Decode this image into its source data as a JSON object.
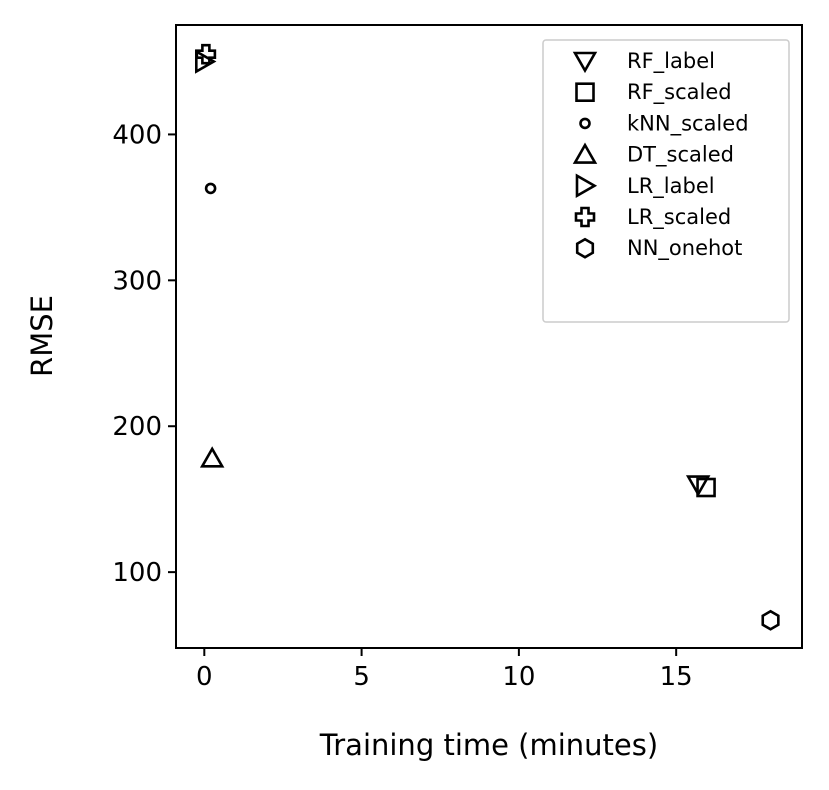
{
  "chart_data": {
    "type": "scatter",
    "title": "",
    "xlabel": "Training time (minutes)",
    "ylabel": "RMSE",
    "xlim": [
      -0.9,
      19.0
    ],
    "ylim": [
      48,
      475
    ],
    "xticks": [
      0,
      5,
      10,
      15
    ],
    "yticks": [
      100,
      200,
      300,
      400
    ],
    "grid": false,
    "legend_position": "top-right",
    "marker_color": "#000000",
    "series": [
      {
        "name": "RF_label",
        "marker": "triangle-down",
        "points": [
          {
            "x": 15.7,
            "y": 160
          }
        ]
      },
      {
        "name": "RF_scaled",
        "marker": "square",
        "points": [
          {
            "x": 15.95,
            "y": 158
          }
        ]
      },
      {
        "name": "kNN_scaled",
        "marker": "circle-small",
        "points": [
          {
            "x": 0.2,
            "y": 363
          }
        ]
      },
      {
        "name": "DT_scaled",
        "marker": "triangle-up",
        "points": [
          {
            "x": 0.25,
            "y": 178
          }
        ]
      },
      {
        "name": "LR_label",
        "marker": "triangle-right",
        "points": [
          {
            "x": 0.0,
            "y": 450
          }
        ]
      },
      {
        "name": "LR_scaled",
        "marker": "plus",
        "points": [
          {
            "x": 0.05,
            "y": 455
          }
        ]
      },
      {
        "name": "NN_onehot",
        "marker": "hexagon",
        "points": [
          {
            "x": 18.0,
            "y": 67
          }
        ]
      }
    ]
  }
}
